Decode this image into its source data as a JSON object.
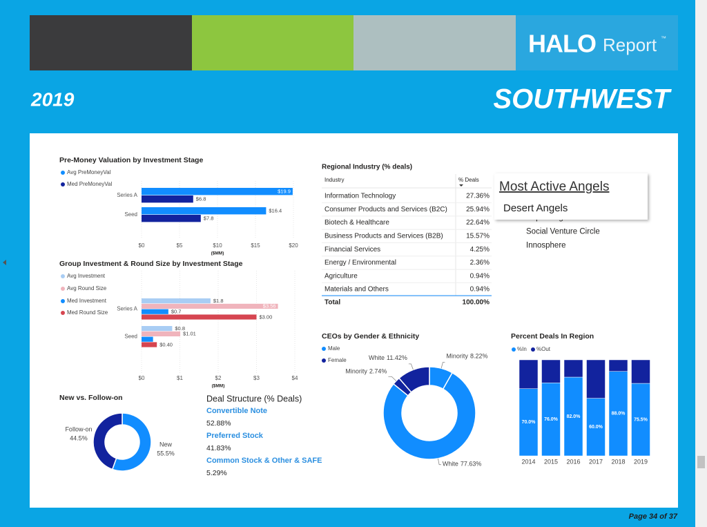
{
  "header": {
    "logo_bold": "HALO",
    "logo_light": "Report",
    "logo_mark": "™",
    "year": "2019",
    "region": "SOUTHWEST"
  },
  "chart_data": [
    {
      "type": "bar",
      "orientation": "horizontal",
      "title": "Pre-Money Valuation by Investment Stage",
      "categories": [
        "Series A",
        "Seed"
      ],
      "series": [
        {
          "name": "Avg PreMoneyVal",
          "color": "#118dff",
          "values": [
            19.9,
            16.4
          ],
          "value_labels": [
            "$19.9",
            "$16.4"
          ]
        },
        {
          "name": "Med PreMoneyVal",
          "color": "#12239e",
          "values": [
            6.8,
            7.8
          ],
          "value_labels": [
            "$6.8",
            "$7.8"
          ]
        }
      ],
      "xlim": [
        0,
        20
      ],
      "xticks": [
        {
          "value": 0,
          "label": "$0"
        },
        {
          "value": 5,
          "label": "$5"
        },
        {
          "value": 10,
          "label": "$10"
        },
        {
          "value": 15,
          "label": "$15"
        },
        {
          "value": 20,
          "label": "$20"
        }
      ],
      "x_label": "($MM)",
      "grid": true
    },
    {
      "type": "bar",
      "orientation": "horizontal",
      "title": "Group Investment & Round Size by Investment Stage",
      "categories": [
        "Series A",
        "Seed"
      ],
      "series": [
        {
          "name": "Avg Investment",
          "color": "#a9cdf4",
          "values": [
            1.8,
            0.8
          ],
          "value_labels": [
            "$1.8",
            "$0.8"
          ]
        },
        {
          "name": "Avg Round Size",
          "color": "#f0b4bc",
          "values": [
            3.56,
            1.01
          ],
          "value_labels": [
            "$3.56",
            "$1.01"
          ]
        },
        {
          "name": "Med Investment",
          "color": "#118dff",
          "values": [
            0.7,
            0.3
          ],
          "value_labels": [
            "$0.7",
            null
          ]
        },
        {
          "name": "Med Round Size",
          "color": "#d64550",
          "values": [
            3.0,
            0.4
          ],
          "value_labels": [
            "$3.00",
            "$0.40"
          ]
        }
      ],
      "xlim": [
        0,
        4
      ],
      "xticks": [
        {
          "value": 0,
          "label": "$0"
        },
        {
          "value": 1,
          "label": "$1"
        },
        {
          "value": 2,
          "label": "$2"
        },
        {
          "value": 3,
          "label": "$3"
        },
        {
          "value": 4,
          "label": "$4"
        }
      ],
      "x_label": "($MM)",
      "grid": true
    },
    {
      "type": "donut",
      "title": "CEOs by Gender & Ethnicity",
      "categories": [
        "Minority",
        "White",
        "Minority",
        "White"
      ],
      "values": [
        8.22,
        77.63,
        2.74,
        11.42
      ],
      "value_labels": [
        "8.22%",
        "77.63%",
        "2.74%",
        "11.42%"
      ],
      "colors": [
        "#118dff",
        "#118dff",
        "#12239e",
        "#12239e"
      ],
      "legend": [
        {
          "name": "Male",
          "color": "#118dff"
        },
        {
          "name": "Female",
          "color": "#12239e"
        }
      ]
    },
    {
      "type": "stacked_column",
      "title": "Percent Deals In Region",
      "categories": [
        "2014",
        "2015",
        "2016",
        "2017",
        "2018",
        "2019"
      ],
      "series": [
        {
          "name": "%In",
          "color": "#118dff",
          "values": [
            70.0,
            76.0,
            82.0,
            60.0,
            88.0,
            75.5
          ],
          "value_labels": [
            "70.0%",
            "76.0%",
            "82.0%",
            "60.0%",
            "88.0%",
            "75.5%"
          ]
        },
        {
          "name": "%Out",
          "color": "#12239e",
          "values": [
            30.0,
            24.0,
            18.0,
            40.0,
            12.0,
            24.5
          ]
        }
      ],
      "ylim": [
        0,
        100
      ]
    },
    {
      "type": "donut",
      "title": "New vs. Follow-on",
      "categories": [
        "New",
        "Follow-on"
      ],
      "values": [
        55.5,
        44.5
      ],
      "value_labels": [
        "55.5%",
        "44.5%"
      ],
      "colors": [
        "#118dff",
        "#12239e"
      ]
    }
  ],
  "industry_table": {
    "title": "Regional Industry (% deals)",
    "columns": [
      "Industry",
      "% Deals"
    ],
    "rows": [
      [
        "Information Technology",
        "27.36%"
      ],
      [
        "Consumer Products and Services (B2C)",
        "25.94%"
      ],
      [
        "Biotech & Healthcare",
        "22.64%"
      ],
      [
        "Business Products and Services (B2B)",
        "15.57%"
      ],
      [
        "Financial Services",
        "4.25%"
      ],
      [
        "Energy / Environmental",
        "2.36%"
      ],
      [
        "Agriculture",
        "0.94%"
      ],
      [
        "Materials and Others",
        "0.94%"
      ]
    ],
    "total": [
      "Total",
      "100.00%"
    ]
  },
  "angels": {
    "title": "Most Active Angels",
    "selected": "Desert Angels",
    "list": [
      "Super Angels",
      "Social Venture Circle",
      "Innosphere"
    ]
  },
  "deal_structure": {
    "title": "Deal Structure (% Deals)",
    "items": [
      {
        "name": "Convertible Note",
        "value": "52.88%"
      },
      {
        "name": "Preferred Stock",
        "value": "41.83%"
      },
      {
        "name": "Common Stock & Other & SAFE",
        "value": "5.29%"
      }
    ]
  },
  "footer": {
    "page": "Page 34 of 37"
  }
}
